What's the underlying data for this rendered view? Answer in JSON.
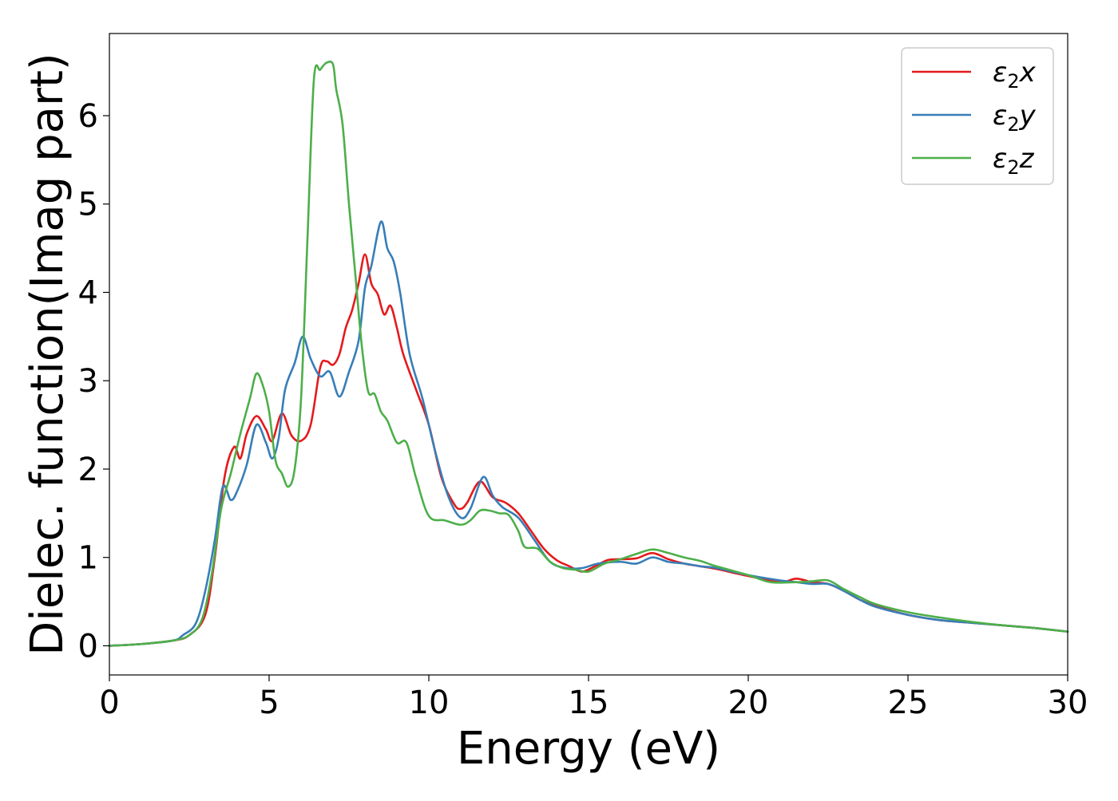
{
  "chart_data": {
    "type": "line",
    "title": "",
    "xlabel": "Energy (eV)",
    "ylabel": "Dielec. function(Imag part)",
    "xlim": [
      0,
      30
    ],
    "ylim": [
      -0.33,
      6.93
    ],
    "xticks": [
      0,
      5,
      10,
      15,
      20,
      25,
      30
    ],
    "yticks": [
      0,
      1,
      2,
      3,
      4,
      5,
      6
    ],
    "grid": false,
    "legend_position": "top-right",
    "series": [
      {
        "name": "ε2x",
        "legend_main": "ε",
        "legend_sub": "2",
        "legend_tail": "x",
        "color": "#e41a1c",
        "x": [
          0,
          1,
          2,
          2.5,
          3,
          3.3,
          3.6,
          3.9,
          4.1,
          4.3,
          4.6,
          4.9,
          5.1,
          5.4,
          5.7,
          6.0,
          6.3,
          6.6,
          6.8,
          7.0,
          7.2,
          7.4,
          7.6,
          7.8,
          8.0,
          8.2,
          8.4,
          8.6,
          8.8,
          9.0,
          9.2,
          9.6,
          10.0,
          10.4,
          10.8,
          11.0,
          11.2,
          11.6,
          12.0,
          12.4,
          12.8,
          13.2,
          13.6,
          14.0,
          14.4,
          14.8,
          15.2,
          15.6,
          16.0,
          16.5,
          17.0,
          17.5,
          18.0,
          18.5,
          19.0,
          20.0,
          21.0,
          21.5,
          22.0,
          22.5,
          23.0,
          23.5,
          24.0,
          25.0,
          26.0,
          27.0,
          28.0,
          29.0,
          30.0
        ],
        "values": [
          0.0,
          0.02,
          0.06,
          0.12,
          0.35,
          1.0,
          1.9,
          2.25,
          2.12,
          2.4,
          2.6,
          2.45,
          2.32,
          2.63,
          2.38,
          2.32,
          2.5,
          3.15,
          3.22,
          3.18,
          3.3,
          3.6,
          3.8,
          4.1,
          4.43,
          4.1,
          3.98,
          3.75,
          3.85,
          3.6,
          3.3,
          2.9,
          2.5,
          1.9,
          1.6,
          1.55,
          1.62,
          1.86,
          1.68,
          1.62,
          1.5,
          1.3,
          1.1,
          0.97,
          0.9,
          0.84,
          0.9,
          0.97,
          0.98,
          0.99,
          1.05,
          0.98,
          0.93,
          0.9,
          0.87,
          0.79,
          0.72,
          0.76,
          0.72,
          0.7,
          0.62,
          0.52,
          0.45,
          0.35,
          0.29,
          0.26,
          0.23,
          0.2,
          0.16
        ]
      },
      {
        "name": "ε2y",
        "legend_main": "ε",
        "legend_sub": "2",
        "legend_tail": "y",
        "color": "#377eb8",
        "x": [
          0,
          1,
          2,
          2.3,
          2.7,
          3.0,
          3.3,
          3.55,
          3.8,
          4.0,
          4.3,
          4.6,
          4.9,
          5.1,
          5.3,
          5.5,
          5.8,
          6.05,
          6.3,
          6.6,
          6.9,
          7.2,
          7.5,
          7.8,
          8.0,
          8.2,
          8.5,
          8.7,
          8.9,
          9.1,
          9.4,
          9.8,
          10.2,
          10.6,
          11.0,
          11.3,
          11.7,
          12.0,
          12.3,
          12.8,
          13.3,
          13.8,
          14.3,
          14.8,
          15.3,
          16.0,
          16.5,
          17.0,
          17.5,
          18.0,
          18.5,
          19.0,
          20.0,
          21.0,
          21.5,
          22.0,
          22.5,
          23.0,
          23.5,
          24.0,
          25.0,
          26.0,
          27.0,
          28.0,
          29.0,
          30.0
        ],
        "values": [
          0.0,
          0.02,
          0.06,
          0.12,
          0.25,
          0.62,
          1.2,
          1.8,
          1.65,
          1.75,
          2.05,
          2.5,
          2.3,
          2.12,
          2.35,
          2.9,
          3.2,
          3.5,
          3.25,
          3.05,
          3.1,
          2.82,
          3.1,
          3.45,
          4.05,
          4.3,
          4.8,
          4.5,
          4.35,
          4.0,
          3.3,
          2.8,
          2.2,
          1.7,
          1.45,
          1.55,
          1.91,
          1.7,
          1.57,
          1.45,
          1.2,
          0.95,
          0.88,
          0.88,
          0.93,
          0.95,
          0.93,
          1.0,
          0.95,
          0.93,
          0.9,
          0.88,
          0.8,
          0.74,
          0.72,
          0.7,
          0.7,
          0.62,
          0.52,
          0.44,
          0.35,
          0.29,
          0.26,
          0.23,
          0.2,
          0.16
        ]
      },
      {
        "name": "ε2z",
        "legend_main": "ε",
        "legend_sub": "2",
        "legend_tail": "z",
        "color": "#4daf4a",
        "x": [
          0,
          1,
          2,
          2.5,
          2.9,
          3.2,
          3.5,
          3.8,
          4.1,
          4.4,
          4.6,
          4.8,
          5.0,
          5.2,
          5.4,
          5.6,
          5.8,
          6.0,
          6.2,
          6.4,
          6.6,
          6.8,
          7.0,
          7.1,
          7.3,
          7.5,
          7.7,
          7.9,
          8.1,
          8.3,
          8.5,
          8.7,
          9.0,
          9.3,
          9.6,
          10.0,
          10.5,
          11.0,
          11.3,
          11.6,
          11.9,
          12.2,
          12.5,
          12.8,
          13.0,
          13.4,
          13.8,
          14.2,
          14.6,
          15.0,
          15.5,
          16.0,
          16.5,
          17.0,
          17.5,
          18.0,
          18.5,
          19.0,
          20.0,
          20.7,
          21.5,
          22.0,
          22.5,
          23.0,
          23.5,
          24.0,
          25.0,
          26.0,
          27.0,
          28.0,
          29.0,
          30.0
        ],
        "values": [
          0.0,
          0.02,
          0.06,
          0.12,
          0.3,
          0.8,
          1.55,
          1.95,
          2.4,
          2.8,
          3.08,
          2.95,
          2.65,
          2.1,
          1.95,
          1.8,
          2.0,
          2.8,
          4.6,
          6.4,
          6.52,
          6.6,
          6.58,
          6.3,
          5.9,
          5.0,
          4.2,
          3.4,
          2.88,
          2.85,
          2.65,
          2.55,
          2.3,
          2.3,
          1.9,
          1.47,
          1.42,
          1.37,
          1.42,
          1.53,
          1.53,
          1.5,
          1.48,
          1.3,
          1.12,
          1.1,
          0.95,
          0.88,
          0.86,
          0.84,
          0.93,
          0.98,
          1.04,
          1.09,
          1.05,
          1.0,
          0.96,
          0.9,
          0.8,
          0.72,
          0.72,
          0.73,
          0.74,
          0.64,
          0.55,
          0.47,
          0.38,
          0.32,
          0.27,
          0.23,
          0.2,
          0.16
        ]
      }
    ]
  }
}
